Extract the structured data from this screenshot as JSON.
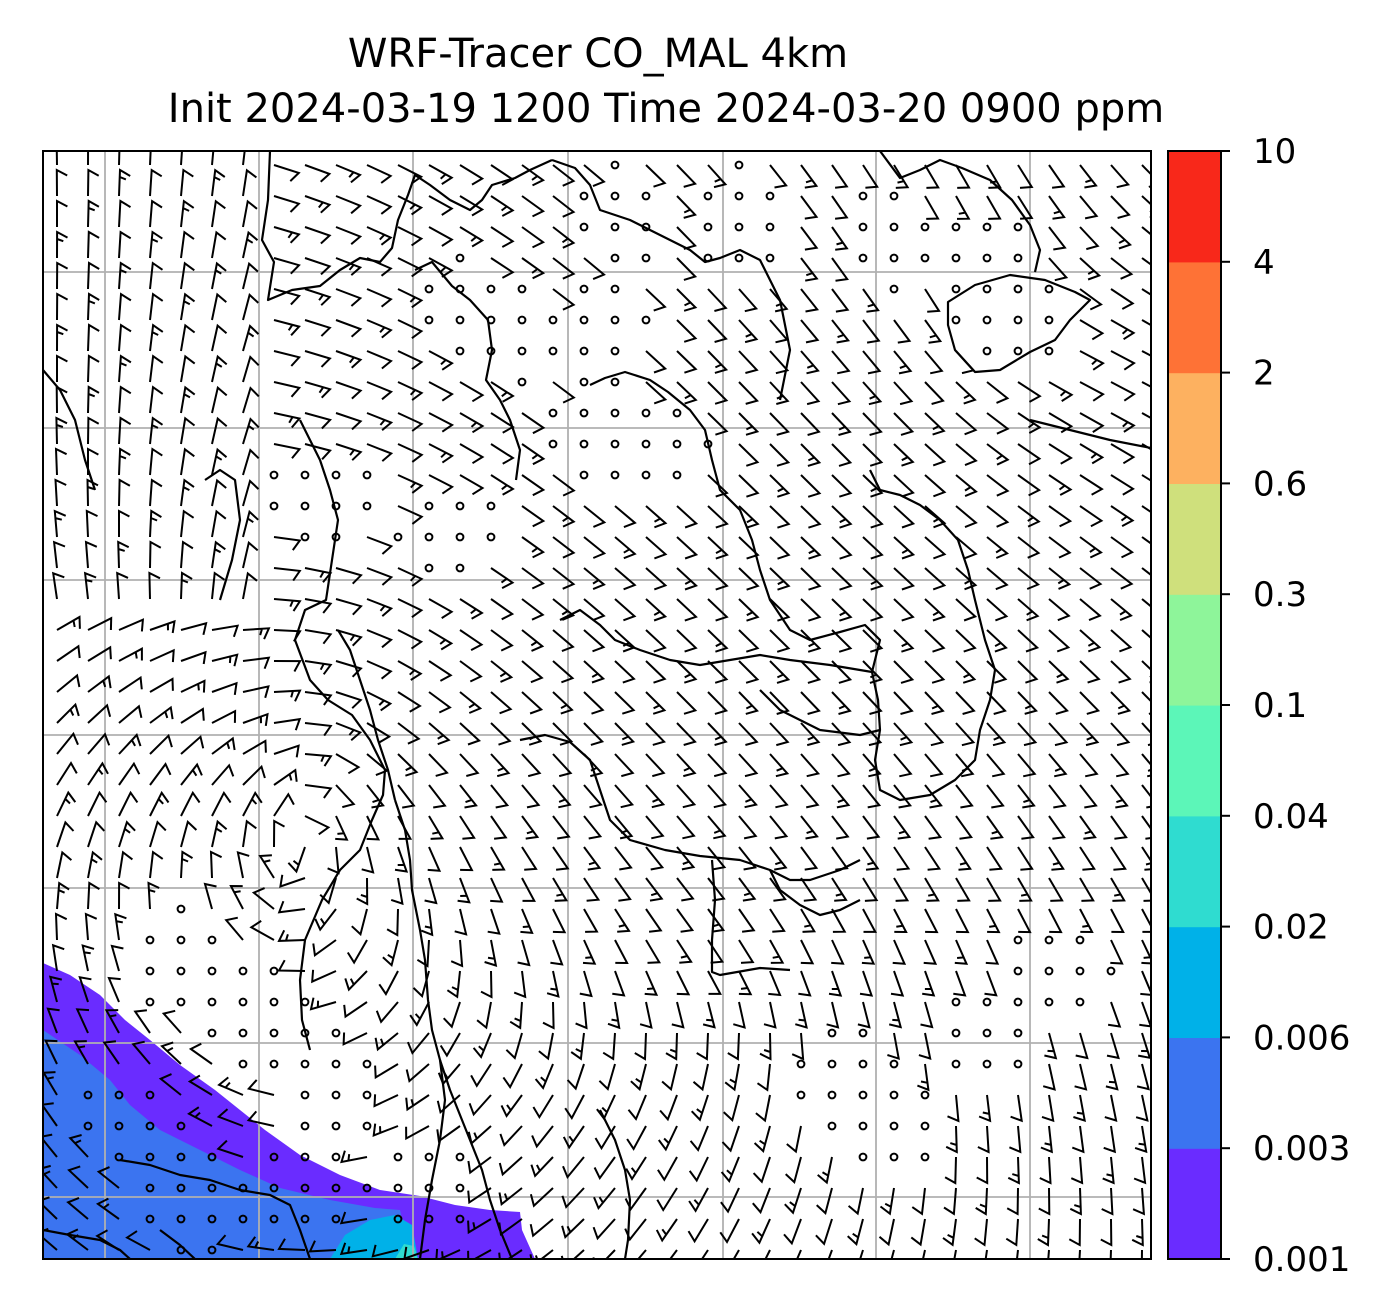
{
  "title": {
    "line1": "WRF-Tracer CO_MAL 4km",
    "line2": "Init 2024-03-19 1200 Time 2024-03-20 0900 ppm"
  },
  "colorbar": {
    "levels": [
      "0.001",
      "0.003",
      "0.006",
      "0.02",
      "0.04",
      "0.1",
      "0.3",
      "0.6",
      "2",
      "4",
      "10"
    ],
    "colors": [
      "#6a2cff",
      "#3b74f0",
      "#00b1e8",
      "#2fdcd0",
      "#5cf6b8",
      "#8ef59a",
      "#cfe07c",
      "#fdb160",
      "#fe7236",
      "#f8281a"
    ]
  },
  "map": {
    "plume_colors": [
      "#6a2cff",
      "#3b74f0",
      "#00b1e8",
      "#2fdcd0"
    ],
    "gridline_color": "#b0b0b0"
  }
}
